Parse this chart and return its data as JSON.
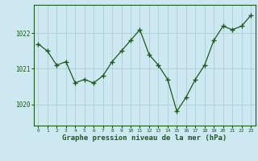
{
  "x": [
    0,
    1,
    2,
    3,
    4,
    5,
    6,
    7,
    8,
    9,
    10,
    11,
    12,
    13,
    14,
    15,
    16,
    17,
    18,
    19,
    20,
    21,
    22,
    23
  ],
  "y": [
    1021.7,
    1021.5,
    1021.1,
    1021.2,
    1020.6,
    1020.7,
    1020.6,
    1020.8,
    1021.2,
    1021.5,
    1021.8,
    1022.1,
    1021.4,
    1021.1,
    1020.7,
    1019.8,
    1020.2,
    1020.7,
    1021.1,
    1021.8,
    1022.2,
    1022.1,
    1022.2,
    1022.5
  ],
  "bg_color": "#cde8f0",
  "line_color": "#1a5c1a",
  "marker_color": "#1a5c1a",
  "grid_color": "#aacfda",
  "xlabel": "Graphe pression niveau de la mer (hPa)",
  "xlabel_color": "#1a5c1a",
  "tick_color": "#1a5c1a",
  "spine_color": "#1a5c1a",
  "yticks": [
    1020,
    1021,
    1022
  ],
  "ylim": [
    1019.4,
    1022.8
  ],
  "xlim": [
    -0.5,
    23.5
  ],
  "figsize": [
    3.2,
    2.0
  ],
  "dpi": 100
}
